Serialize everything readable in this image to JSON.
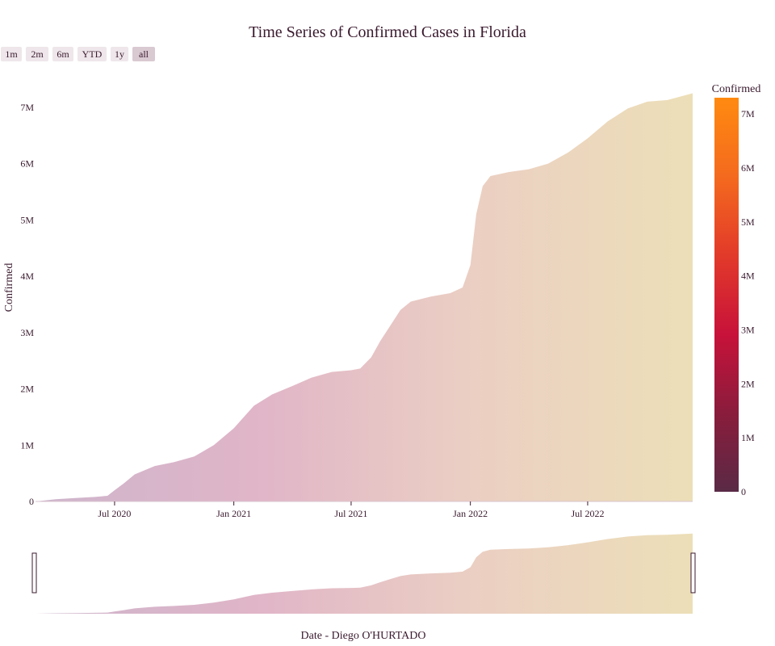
{
  "title": "Time Series of Confirmed Cases in Florida",
  "range_selector": [
    "1m",
    "2m",
    "6m",
    "YTD",
    "1y",
    "all"
  ],
  "range_selector_active": "all",
  "colorbar": {
    "title": "Confirmed",
    "ticks": [
      "0",
      "1M",
      "2M",
      "3M",
      "4M",
      "5M",
      "6M",
      "7M"
    ],
    "colors": [
      "#5a2a45",
      "#8a1c3c",
      "#c8123a",
      "#e23a2a",
      "#f46a1e",
      "#ff8a10"
    ]
  },
  "fill_colors": [
    "#cdb5cc",
    "#e0b5c8",
    "#ebcfc3",
    "#ecdfb8"
  ],
  "chart_data": {
    "type": "area",
    "title": "Time Series of Confirmed Cases in Florida",
    "xlabel": "Date - Diego O'HURTADO",
    "ylabel": "Confirmed",
    "x_ticks": [
      "Jul 2020",
      "Jan 2021",
      "Jul 2021",
      "Jan 2022",
      "Jul 2022"
    ],
    "y_ticks": [
      "0",
      "1M",
      "2M",
      "3M",
      "4M",
      "5M",
      "6M",
      "7M"
    ],
    "xlim": [
      "2020-03-01",
      "2022-12-10"
    ],
    "ylim": [
      0,
      7300000
    ],
    "series": [
      {
        "x": [
          "2020-03-01",
          "2020-04-01",
          "2020-05-01",
          "2020-06-01",
          "2020-06-20",
          "2020-07-01",
          "2020-07-15",
          "2020-08-01",
          "2020-09-01",
          "2020-10-01",
          "2020-11-01",
          "2020-12-01",
          "2021-01-01",
          "2021-02-01",
          "2021-03-01",
          "2021-04-01",
          "2021-05-01",
          "2021-06-01",
          "2021-07-01",
          "2021-07-15",
          "2021-08-01",
          "2021-08-15",
          "2021-09-01",
          "2021-09-15",
          "2021-10-01",
          "2021-11-01",
          "2021-12-01",
          "2021-12-20",
          "2022-01-01",
          "2022-01-10",
          "2022-01-20",
          "2022-02-01",
          "2022-03-01",
          "2022-04-01",
          "2022-05-01",
          "2022-06-01",
          "2022-07-01",
          "2022-08-01",
          "2022-09-01",
          "2022-10-01",
          "2022-11-01",
          "2022-12-10"
        ],
        "y": [
          0,
          40000,
          60000,
          80000,
          100000,
          200000,
          320000,
          480000,
          630000,
          700000,
          800000,
          1000000,
          1300000,
          1700000,
          1900000,
          2050000,
          2200000,
          2300000,
          2330000,
          2360000,
          2560000,
          2850000,
          3150000,
          3400000,
          3550000,
          3640000,
          3700000,
          3800000,
          4200000,
          5100000,
          5600000,
          5780000,
          5850000,
          5900000,
          6000000,
          6200000,
          6450000,
          6750000,
          6980000,
          7100000,
          7130000,
          7250000
        ]
      }
    ]
  }
}
